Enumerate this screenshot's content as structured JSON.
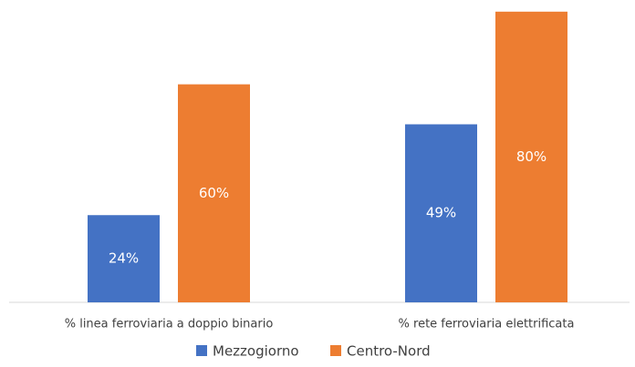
{
  "chart_data": {
    "type": "bar",
    "categories": [
      "% linea ferroviaria a doppio binario",
      "% rete ferroviaria elettrificata"
    ],
    "series": [
      {
        "name": "Mezzogiorno",
        "color": "#4472c4",
        "values": [
          24,
          49
        ],
        "value_labels": [
          "24%",
          "49%"
        ]
      },
      {
        "name": "Centro-Nord",
        "color": "#ed7d31",
        "values": [
          60,
          80
        ],
        "value_labels": [
          "60%",
          "80%"
        ]
      }
    ],
    "legend": "bottom"
  }
}
